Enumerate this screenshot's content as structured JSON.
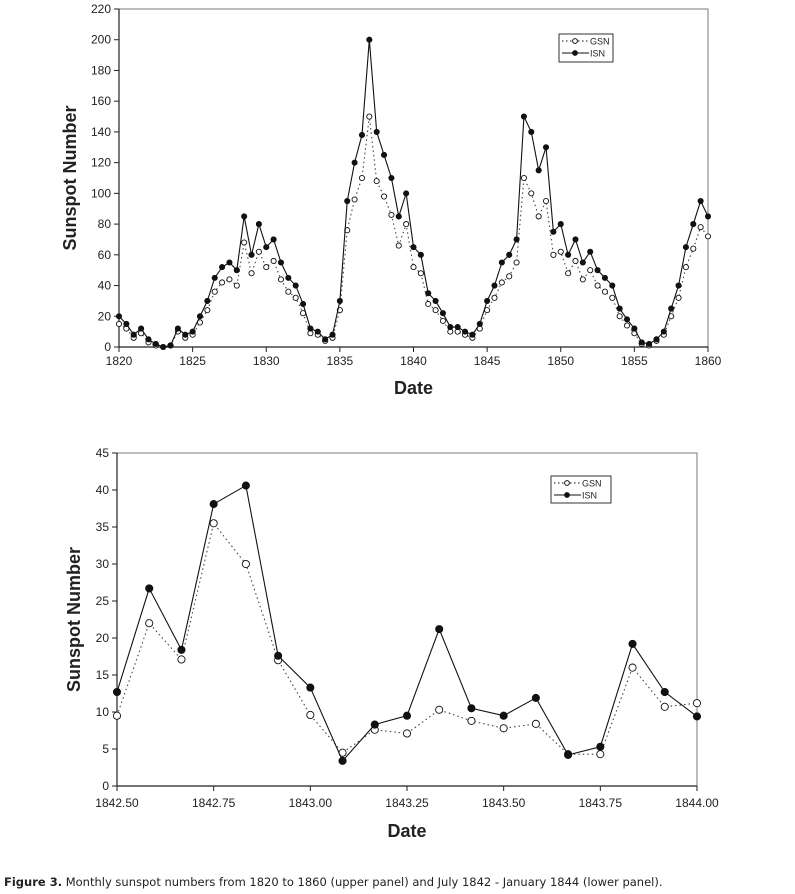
{
  "chart_data": [
    {
      "type": "line",
      "panel": "upper",
      "title": "",
      "xlabel": "Date",
      "ylabel": "Sunspot Number",
      "xlim": [
        1820,
        1860
      ],
      "ylim": [
        0,
        220
      ],
      "xticks": [
        "1820",
        "1825",
        "1830",
        "1835",
        "1840",
        "1845",
        "1850",
        "1855",
        "1860"
      ],
      "yticks": [
        "0",
        "20",
        "40",
        "60",
        "80",
        "100",
        "120",
        "140",
        "160",
        "180",
        "200",
        "220"
      ],
      "legend_position": "top-right",
      "grid": false,
      "x_start": 1820,
      "x_step": 0.5,
      "series": [
        {
          "name": "GSN",
          "style": "dotted-open-circle",
          "values": [
            15,
            12,
            6,
            9,
            3,
            1,
            0,
            1,
            10,
            6,
            8,
            16,
            24,
            36,
            42,
            44,
            40,
            68,
            48,
            62,
            52,
            56,
            44,
            36,
            32,
            22,
            9,
            8,
            4,
            6,
            24,
            76,
            96,
            110,
            150,
            108,
            98,
            86,
            66,
            80,
            52,
            48,
            28,
            24,
            17,
            10,
            10,
            8,
            6,
            12,
            24,
            32,
            42,
            46,
            55,
            110,
            100,
            85,
            95,
            60,
            62,
            48,
            56,
            44,
            50,
            40,
            36,
            32,
            20,
            14,
            9,
            2,
            1,
            4,
            8,
            20,
            32,
            52,
            64,
            78,
            72
          ]
        },
        {
          "name": "ISN",
          "style": "solid-filled-circle",
          "values": [
            20,
            15,
            8,
            12,
            5,
            2,
            0,
            1,
            12,
            8,
            10,
            20,
            30,
            45,
            52,
            55,
            50,
            85,
            60,
            80,
            65,
            70,
            55,
            45,
            40,
            28,
            12,
            10,
            5,
            8,
            30,
            95,
            120,
            138,
            200,
            140,
            125,
            110,
            85,
            100,
            65,
            60,
            35,
            30,
            22,
            13,
            13,
            10,
            8,
            15,
            30,
            40,
            55,
            60,
            70,
            150,
            140,
            115,
            130,
            75,
            80,
            60,
            70,
            55,
            62,
            50,
            45,
            40,
            25,
            18,
            12,
            3,
            2,
            5,
            10,
            25,
            40,
            65,
            80,
            95,
            85
          ]
        }
      ]
    },
    {
      "type": "line",
      "panel": "lower",
      "title": "",
      "xlabel": "Date",
      "ylabel": "Sunspot Number",
      "xlim": [
        1842.5,
        1844.0
      ],
      "ylim": [
        0,
        45
      ],
      "xticks": [
        "1842.50",
        "1842.75",
        "1843.00",
        "1843.25",
        "1843.50",
        "1843.75",
        "1844.00"
      ],
      "yticks": [
        "0",
        "5",
        "10",
        "15",
        "20",
        "25",
        "30",
        "35",
        "40",
        "45"
      ],
      "legend_position": "top-right",
      "grid": false,
      "x_start": 1842.5,
      "x_step": 0.08333,
      "series": [
        {
          "name": "GSN",
          "style": "dotted-open-circle",
          "values": [
            9.5,
            22.0,
            17.1,
            35.5,
            30.0,
            17.0,
            9.6,
            4.5,
            7.6,
            7.1,
            10.3,
            8.8,
            7.8,
            8.4,
            4.3,
            4.3,
            16.0,
            10.7,
            11.2
          ]
        },
        {
          "name": "ISN",
          "style": "solid-filled-circle",
          "values": [
            12.7,
            26.7,
            18.4,
            38.1,
            40.6,
            17.6,
            13.3,
            3.4,
            8.3,
            9.5,
            21.2,
            10.5,
            9.5,
            11.9,
            4.2,
            5.3,
            19.2,
            12.7,
            9.4
          ]
        }
      ]
    }
  ],
  "caption": {
    "label": "Figure 3.",
    "text": " Monthly sunspot numbers from 1820 to 1860 (upper panel) and July 1842 - January 1844 (lower panel)."
  }
}
